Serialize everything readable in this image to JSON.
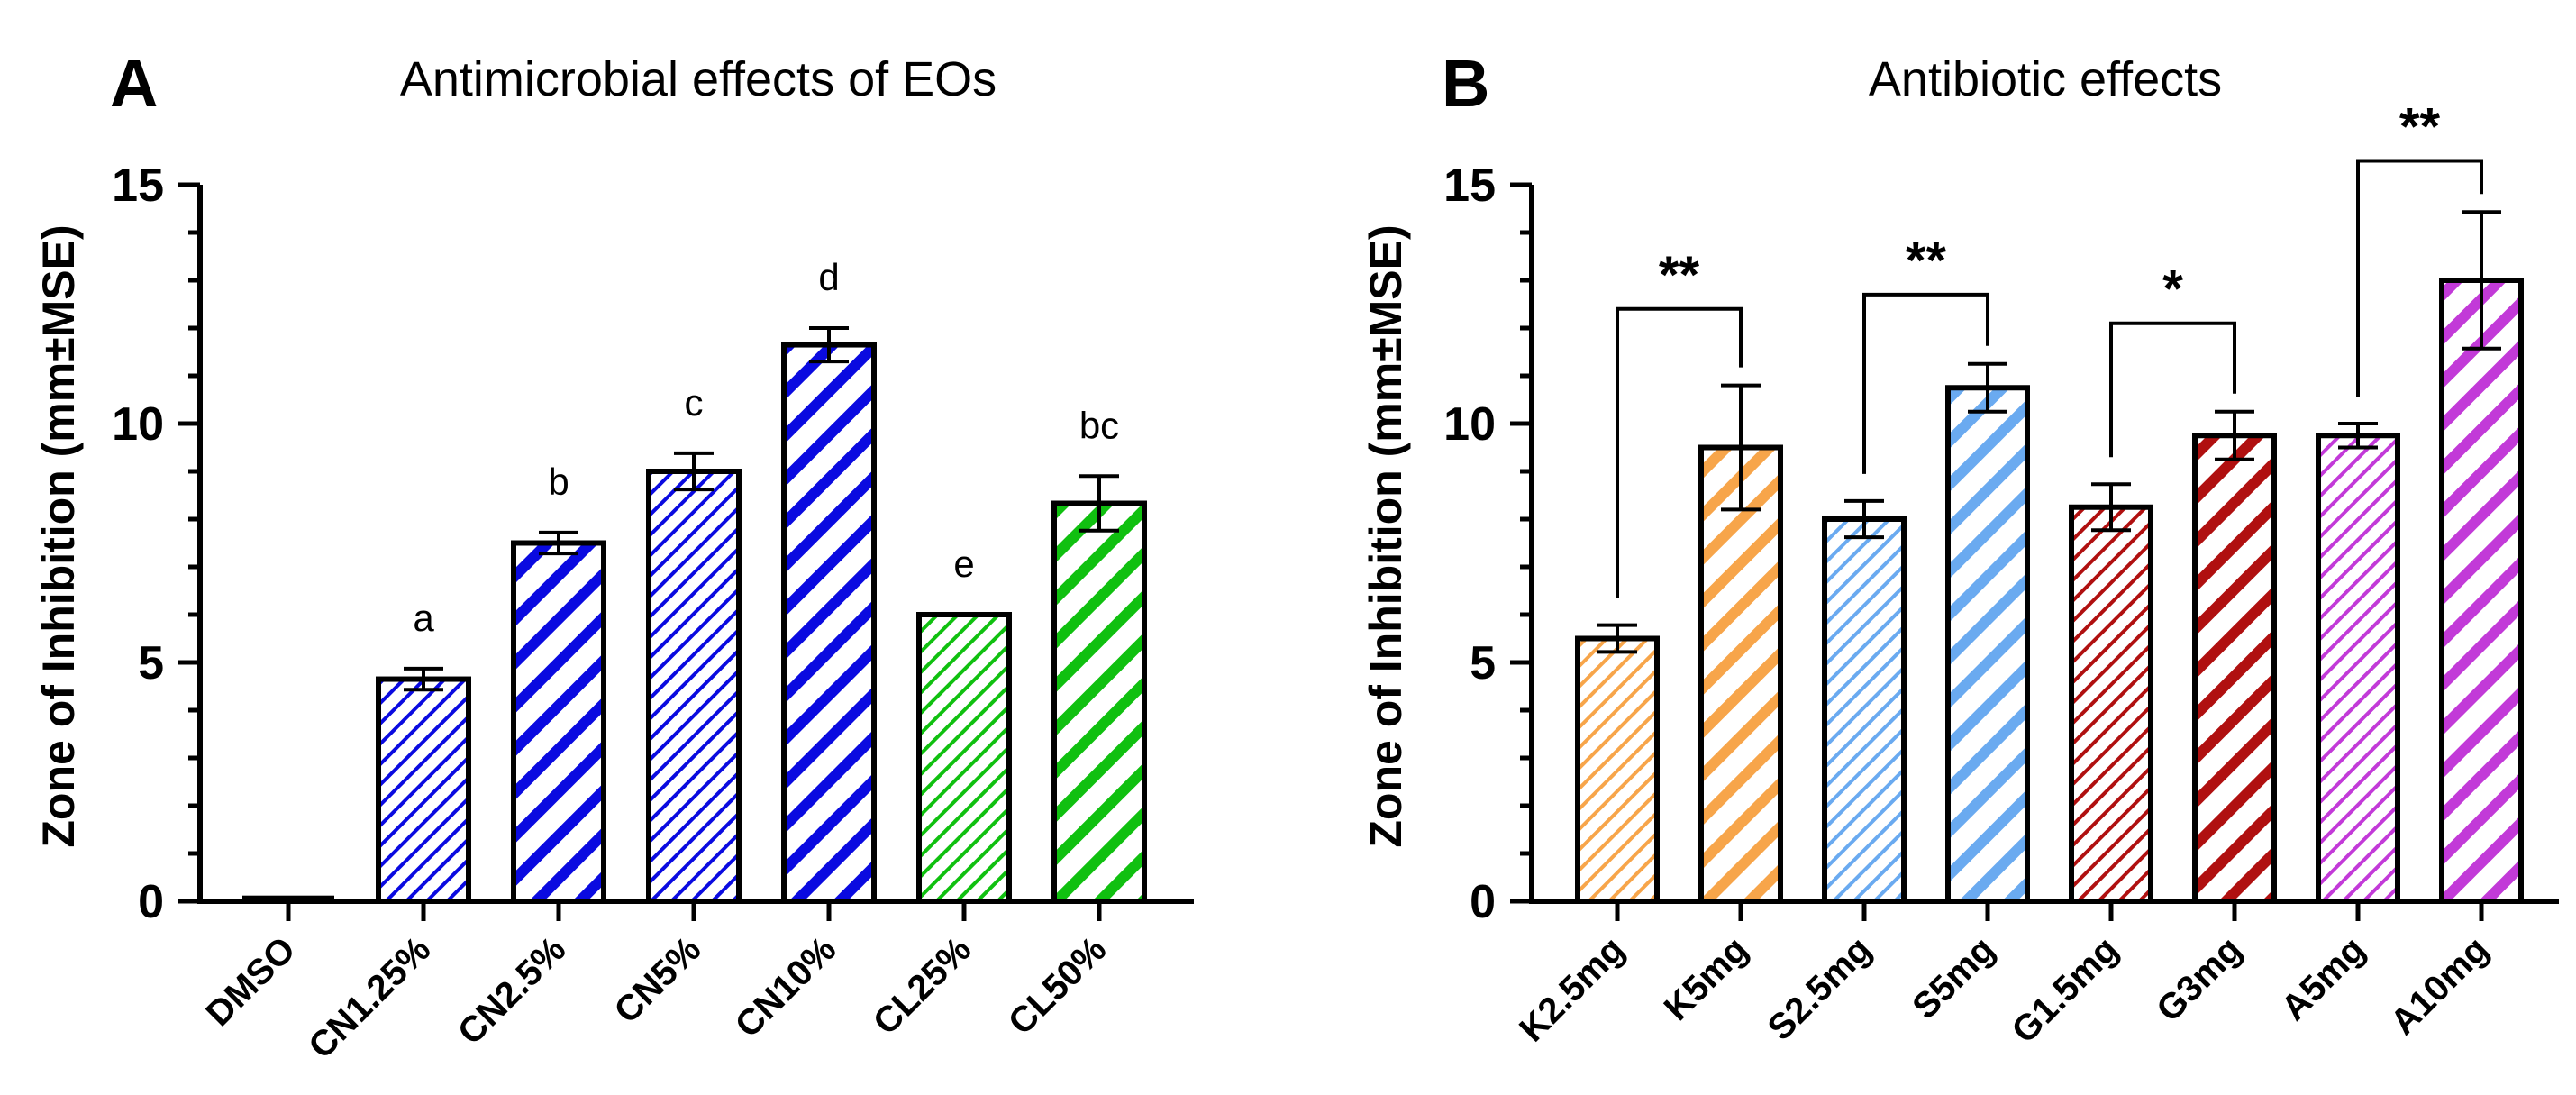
{
  "panel_letters": [
    "A",
    "B"
  ],
  "chart_data": [
    {
      "type": "bar",
      "title": "Antimicrobial effects of EOs",
      "ylabel": "Zone of Inhibition (mm±MSE)",
      "xlabel": "",
      "ylim": [
        0,
        15
      ],
      "yticks": [
        0,
        5,
        10,
        15
      ],
      "categories": [
        "DMSO",
        "CN1.25%",
        "CN2.5%",
        "CN5%",
        "CN10%",
        "CL25%",
        "CL50%"
      ],
      "values": [
        0.1,
        4.65,
        7.5,
        9.0,
        11.65,
        6.0,
        8.33
      ],
      "errors": [
        0,
        0.22,
        0.22,
        0.38,
        0.35,
        0,
        0.57
      ],
      "colors": [
        "#000000",
        "#0a0ae0",
        "#0a0ae0",
        "#0a0ae0",
        "#0a0ae0",
        "#10c010",
        "#10c010"
      ],
      "patterns": [
        "none",
        "fine",
        "wide",
        "fine",
        "wide",
        "fine",
        "wide"
      ],
      "letters": [
        "",
        "a",
        "b",
        "c",
        "d",
        "e",
        "bc"
      ],
      "grid": false
    },
    {
      "type": "bar",
      "title": "Antibiotic effects",
      "ylabel": "Zone of Inhibition (mm±MSE)",
      "xlabel": "",
      "ylim": [
        0,
        15
      ],
      "yticks": [
        0,
        5,
        10,
        15
      ],
      "categories": [
        "K2.5mg",
        "K5mg",
        "S2.5mg",
        "S5mg",
        "G1.5mg",
        "G3mg",
        "A5mg",
        "A10mg"
      ],
      "values": [
        5.5,
        9.5,
        8.0,
        10.75,
        8.25,
        9.75,
        9.75,
        13.0
      ],
      "errors": [
        0.28,
        1.3,
        0.38,
        0.5,
        0.48,
        0.5,
        0.25,
        1.43
      ],
      "colors": [
        "#f7a54a",
        "#f7a54a",
        "#6aaaf0",
        "#6aaaf0",
        "#b01010",
        "#b01010",
        "#c23ad8",
        "#c23ad8"
      ],
      "patterns": [
        "fine",
        "wide",
        "fine",
        "wide",
        "fine",
        "wide",
        "fine",
        "wide"
      ],
      "grid": false,
      "comparisons": [
        {
          "from": 0,
          "to": 1,
          "label": "**",
          "y": 12.4
        },
        {
          "from": 2,
          "to": 3,
          "label": "**",
          "y": 12.7
        },
        {
          "from": 4,
          "to": 5,
          "label": "*",
          "y": 12.1
        },
        {
          "from": 6,
          "to": 7,
          "label": "**",
          "y": 15.5
        }
      ]
    }
  ]
}
